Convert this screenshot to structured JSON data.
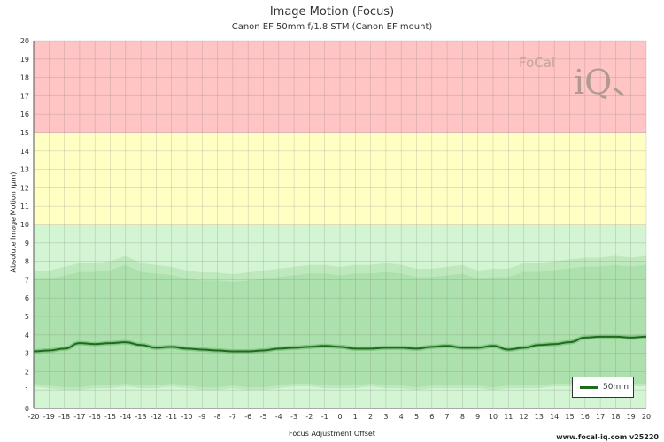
{
  "header": {
    "title": "Image Motion (Focus)",
    "subtitle": "Canon EF 50mm f/1.8 STM (Canon EF mount)"
  },
  "footer": {
    "text": "www.focal-iq.com  v25220"
  },
  "logo": {
    "text_focal": "FoCal",
    "text_iq": "iQ"
  },
  "colors": {
    "zone_red": "#ffc4c4",
    "zone_yellow": "#ffffc4",
    "zone_green": "#d3f5d3",
    "band_outer": "#b8e6b8",
    "band_inner": "#9fd89f",
    "line": "#1e6b1e"
  },
  "chart_data": {
    "type": "line",
    "title": "Image Motion (Focus)",
    "subtitle": "Canon EF 50mm f/1.8 STM (Canon EF mount)",
    "xlabel": "Focus Adjustment Offset",
    "ylabel": "Absolute Image Motion (µm)",
    "xlim": [
      -20,
      20
    ],
    "ylim": [
      0,
      20
    ],
    "x_ticks": [
      -20,
      -19,
      -18,
      -17,
      -16,
      -15,
      -14,
      -13,
      -12,
      -11,
      -10,
      -9,
      -8,
      -7,
      -6,
      -5,
      -4,
      -3,
      -2,
      -1,
      0,
      1,
      2,
      3,
      4,
      5,
      6,
      7,
      8,
      9,
      10,
      11,
      12,
      13,
      14,
      15,
      16,
      17,
      18,
      19,
      20
    ],
    "y_ticks": [
      0,
      1,
      2,
      3,
      4,
      5,
      6,
      7,
      8,
      9,
      10,
      11,
      12,
      13,
      14,
      15,
      16,
      17,
      18,
      19,
      20
    ],
    "grid": true,
    "legend_position": "bottom-right",
    "zones": [
      {
        "from": 0,
        "to": 10,
        "color": "green"
      },
      {
        "from": 10,
        "to": 15,
        "color": "yellow"
      },
      {
        "from": 15,
        "to": 20,
        "color": "red"
      }
    ],
    "x": [
      -20,
      -19,
      -18,
      -17,
      -16,
      -15,
      -14,
      -13,
      -12,
      -11,
      -10,
      -9,
      -8,
      -7,
      -6,
      -5,
      -4,
      -3,
      -2,
      -1,
      0,
      1,
      2,
      3,
      4,
      5,
      6,
      7,
      8,
      9,
      10,
      11,
      12,
      13,
      14,
      15,
      16,
      17,
      18,
      19,
      20
    ],
    "series": [
      {
        "name": "50mm",
        "values": [
          3.1,
          3.15,
          3.25,
          3.55,
          3.5,
          3.55,
          3.6,
          3.45,
          3.3,
          3.35,
          3.25,
          3.2,
          3.15,
          3.1,
          3.1,
          3.15,
          3.25,
          3.3,
          3.35,
          3.4,
          3.35,
          3.25,
          3.25,
          3.3,
          3.3,
          3.25,
          3.35,
          3.4,
          3.3,
          3.3,
          3.4,
          3.2,
          3.3,
          3.45,
          3.5,
          3.6,
          3.85,
          3.9,
          3.9,
          3.85,
          3.9
        ]
      }
    ],
    "band_upper": [
      7.5,
      7.5,
      7.7,
      7.9,
      7.9,
      8.0,
      8.3,
      7.9,
      7.8,
      7.7,
      7.5,
      7.4,
      7.4,
      7.3,
      7.4,
      7.5,
      7.6,
      7.7,
      7.8,
      7.8,
      7.7,
      7.8,
      7.8,
      7.9,
      7.8,
      7.6,
      7.6,
      7.7,
      7.8,
      7.5,
      7.6,
      7.6,
      7.9,
      7.9,
      8.0,
      8.1,
      8.2,
      8.2,
      8.3,
      8.2,
      8.3
    ],
    "band_lower": [
      1.2,
      1.1,
      1.0,
      1.0,
      1.1,
      1.1,
      1.2,
      1.1,
      1.1,
      1.2,
      1.1,
      1.0,
      1.0,
      1.1,
      1.0,
      1.0,
      1.1,
      1.2,
      1.2,
      1.1,
      1.1,
      1.1,
      1.2,
      1.1,
      1.1,
      1.0,
      1.1,
      1.1,
      1.1,
      1.1,
      1.0,
      1.1,
      1.1,
      1.1,
      1.2,
      1.2,
      1.2,
      1.1,
      1.1,
      1.2,
      1.2
    ]
  }
}
